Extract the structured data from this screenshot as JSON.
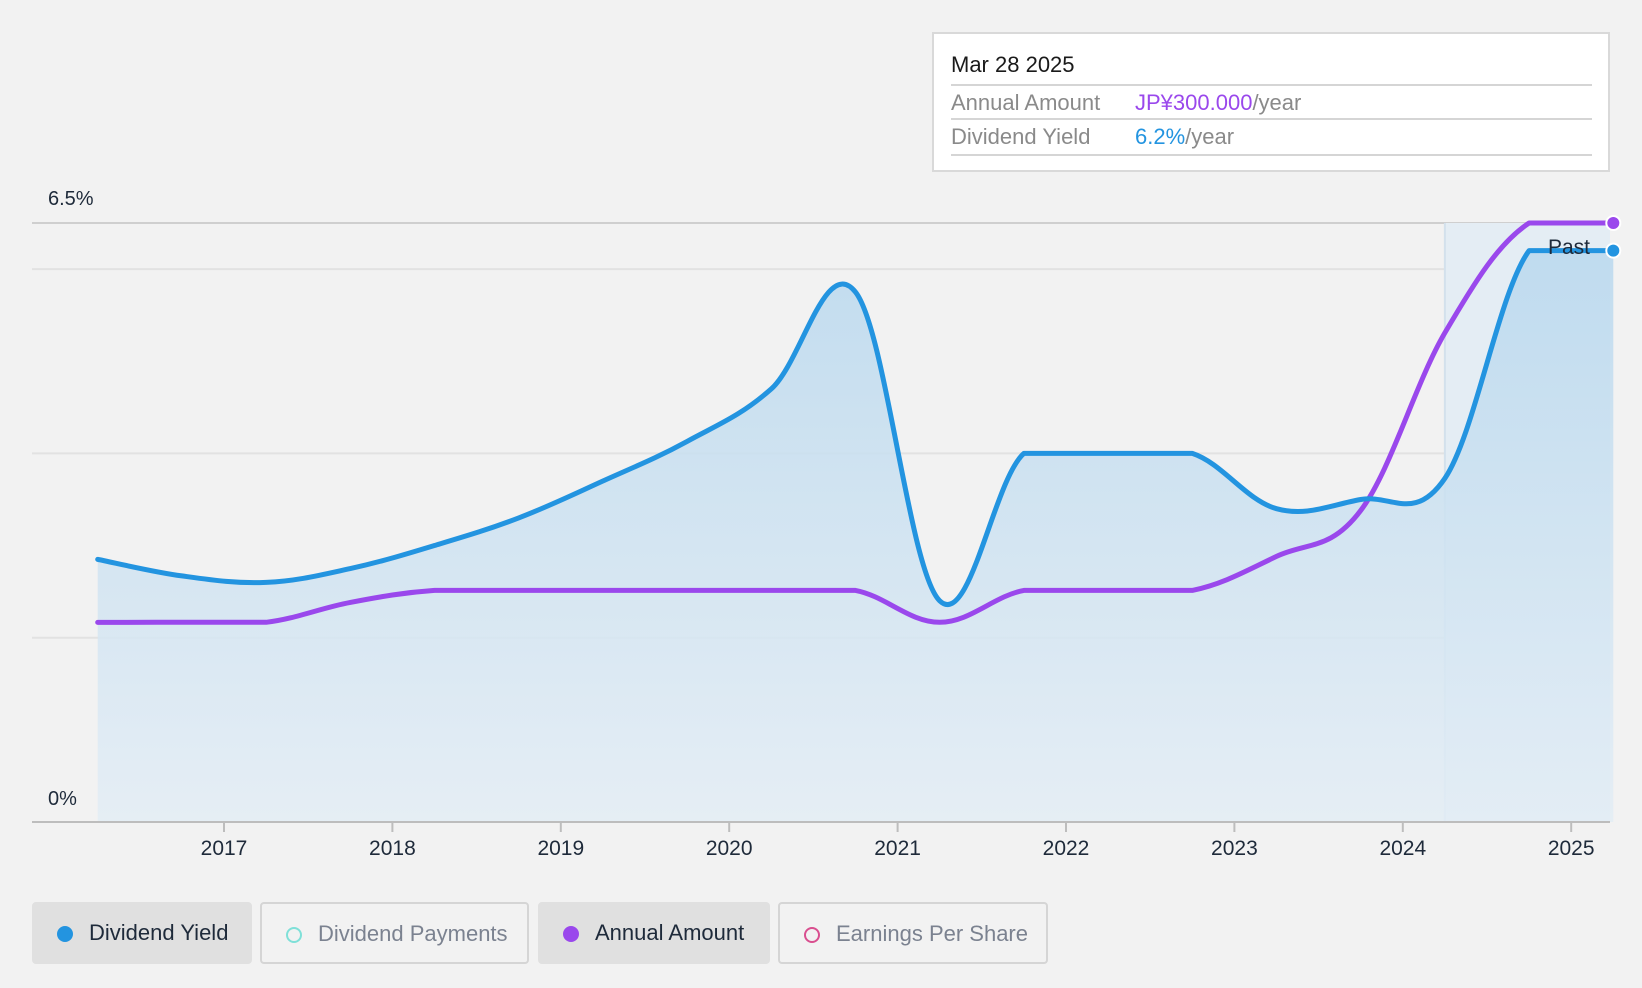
{
  "tooltip": {
    "date": "Mar 28 2025",
    "rows": [
      {
        "label": "Annual Amount",
        "value": "JP¥300.000",
        "unit": "/year"
      },
      {
        "label": "Dividend Yield",
        "value": "6.2%",
        "unit": "/year"
      }
    ]
  },
  "legend": [
    {
      "label": "Dividend Yield",
      "color": "#2394e0",
      "active": true
    },
    {
      "label": "Dividend Payments",
      "color": "#7fe0d8",
      "active": false
    },
    {
      "label": "Annual Amount",
      "color": "#9a48ec",
      "active": true
    },
    {
      "label": "Earnings Per Share",
      "color": "#d94f8f",
      "active": false
    }
  ],
  "chart_data": {
    "type": "area",
    "y_tick_labels": [
      "6.5%",
      "0%"
    ],
    "ylim": [
      0,
      6.5
    ],
    "x_tick_labels": [
      "2017",
      "2018",
      "2019",
      "2020",
      "2021",
      "2022",
      "2023",
      "2024",
      "2025"
    ],
    "past_label": "Past",
    "grid": true,
    "series": [
      {
        "name": "Dividend Yield",
        "color": "#2394e0",
        "unit": "%",
        "points": [
          [
            2016.25,
            2.85
          ],
          [
            2016.75,
            2.67
          ],
          [
            2017.25,
            2.6
          ],
          [
            2017.75,
            2.75
          ],
          [
            2018.25,
            3.0
          ],
          [
            2018.75,
            3.3
          ],
          [
            2019.25,
            3.7
          ],
          [
            2019.75,
            4.13
          ],
          [
            2020.25,
            4.7
          ],
          [
            2020.75,
            5.75
          ],
          [
            2021.25,
            2.4
          ],
          [
            2021.75,
            4.0
          ],
          [
            2022.25,
            4.0
          ],
          [
            2022.75,
            4.0
          ],
          [
            2023.25,
            3.4
          ],
          [
            2023.75,
            3.5
          ],
          [
            2024.25,
            3.73
          ],
          [
            2024.75,
            6.2
          ],
          [
            2025.25,
            6.2
          ]
        ]
      },
      {
        "name": "Annual Amount",
        "color": "#9a48ec",
        "unit": "JP¥",
        "points": [
          [
            2016.25,
            100
          ],
          [
            2016.75,
            100
          ],
          [
            2017.25,
            100
          ],
          [
            2017.75,
            110
          ],
          [
            2018.25,
            116
          ],
          [
            2018.75,
            116
          ],
          [
            2019.25,
            116
          ],
          [
            2019.75,
            116
          ],
          [
            2020.25,
            116
          ],
          [
            2020.75,
            116
          ],
          [
            2021.25,
            100
          ],
          [
            2021.75,
            116
          ],
          [
            2022.25,
            116
          ],
          [
            2022.75,
            116
          ],
          [
            2023.25,
            133
          ],
          [
            2023.75,
            156
          ],
          [
            2024.25,
            245
          ],
          [
            2024.75,
            300
          ],
          [
            2025.25,
            300
          ]
        ]
      }
    ]
  }
}
